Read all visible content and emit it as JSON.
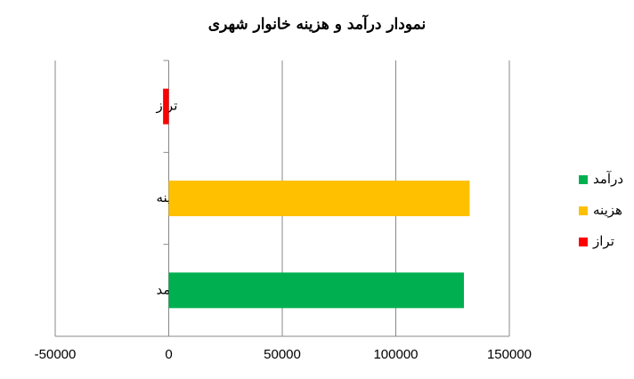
{
  "chart_data": {
    "type": "bar",
    "orientation": "horizontal",
    "title": "نمودار درآمد و هزینه خانوار شهری",
    "categories": [
      "درآمد",
      "هزینه",
      "تراز"
    ],
    "series": [
      {
        "name": "درآمد",
        "color": "#00b050",
        "values": [
          130000,
          null,
          null
        ]
      },
      {
        "name": "هزینه",
        "color": "#ffc000",
        "values": [
          null,
          132500,
          null
        ]
      },
      {
        "name": "تراز",
        "color": "#ff0000",
        "values": [
          null,
          null,
          -2500
        ]
      }
    ],
    "xlim": [
      -50000,
      150000
    ],
    "xticks": [
      -50000,
      0,
      50000,
      100000,
      150000
    ],
    "grid": true,
    "legend": "right"
  }
}
